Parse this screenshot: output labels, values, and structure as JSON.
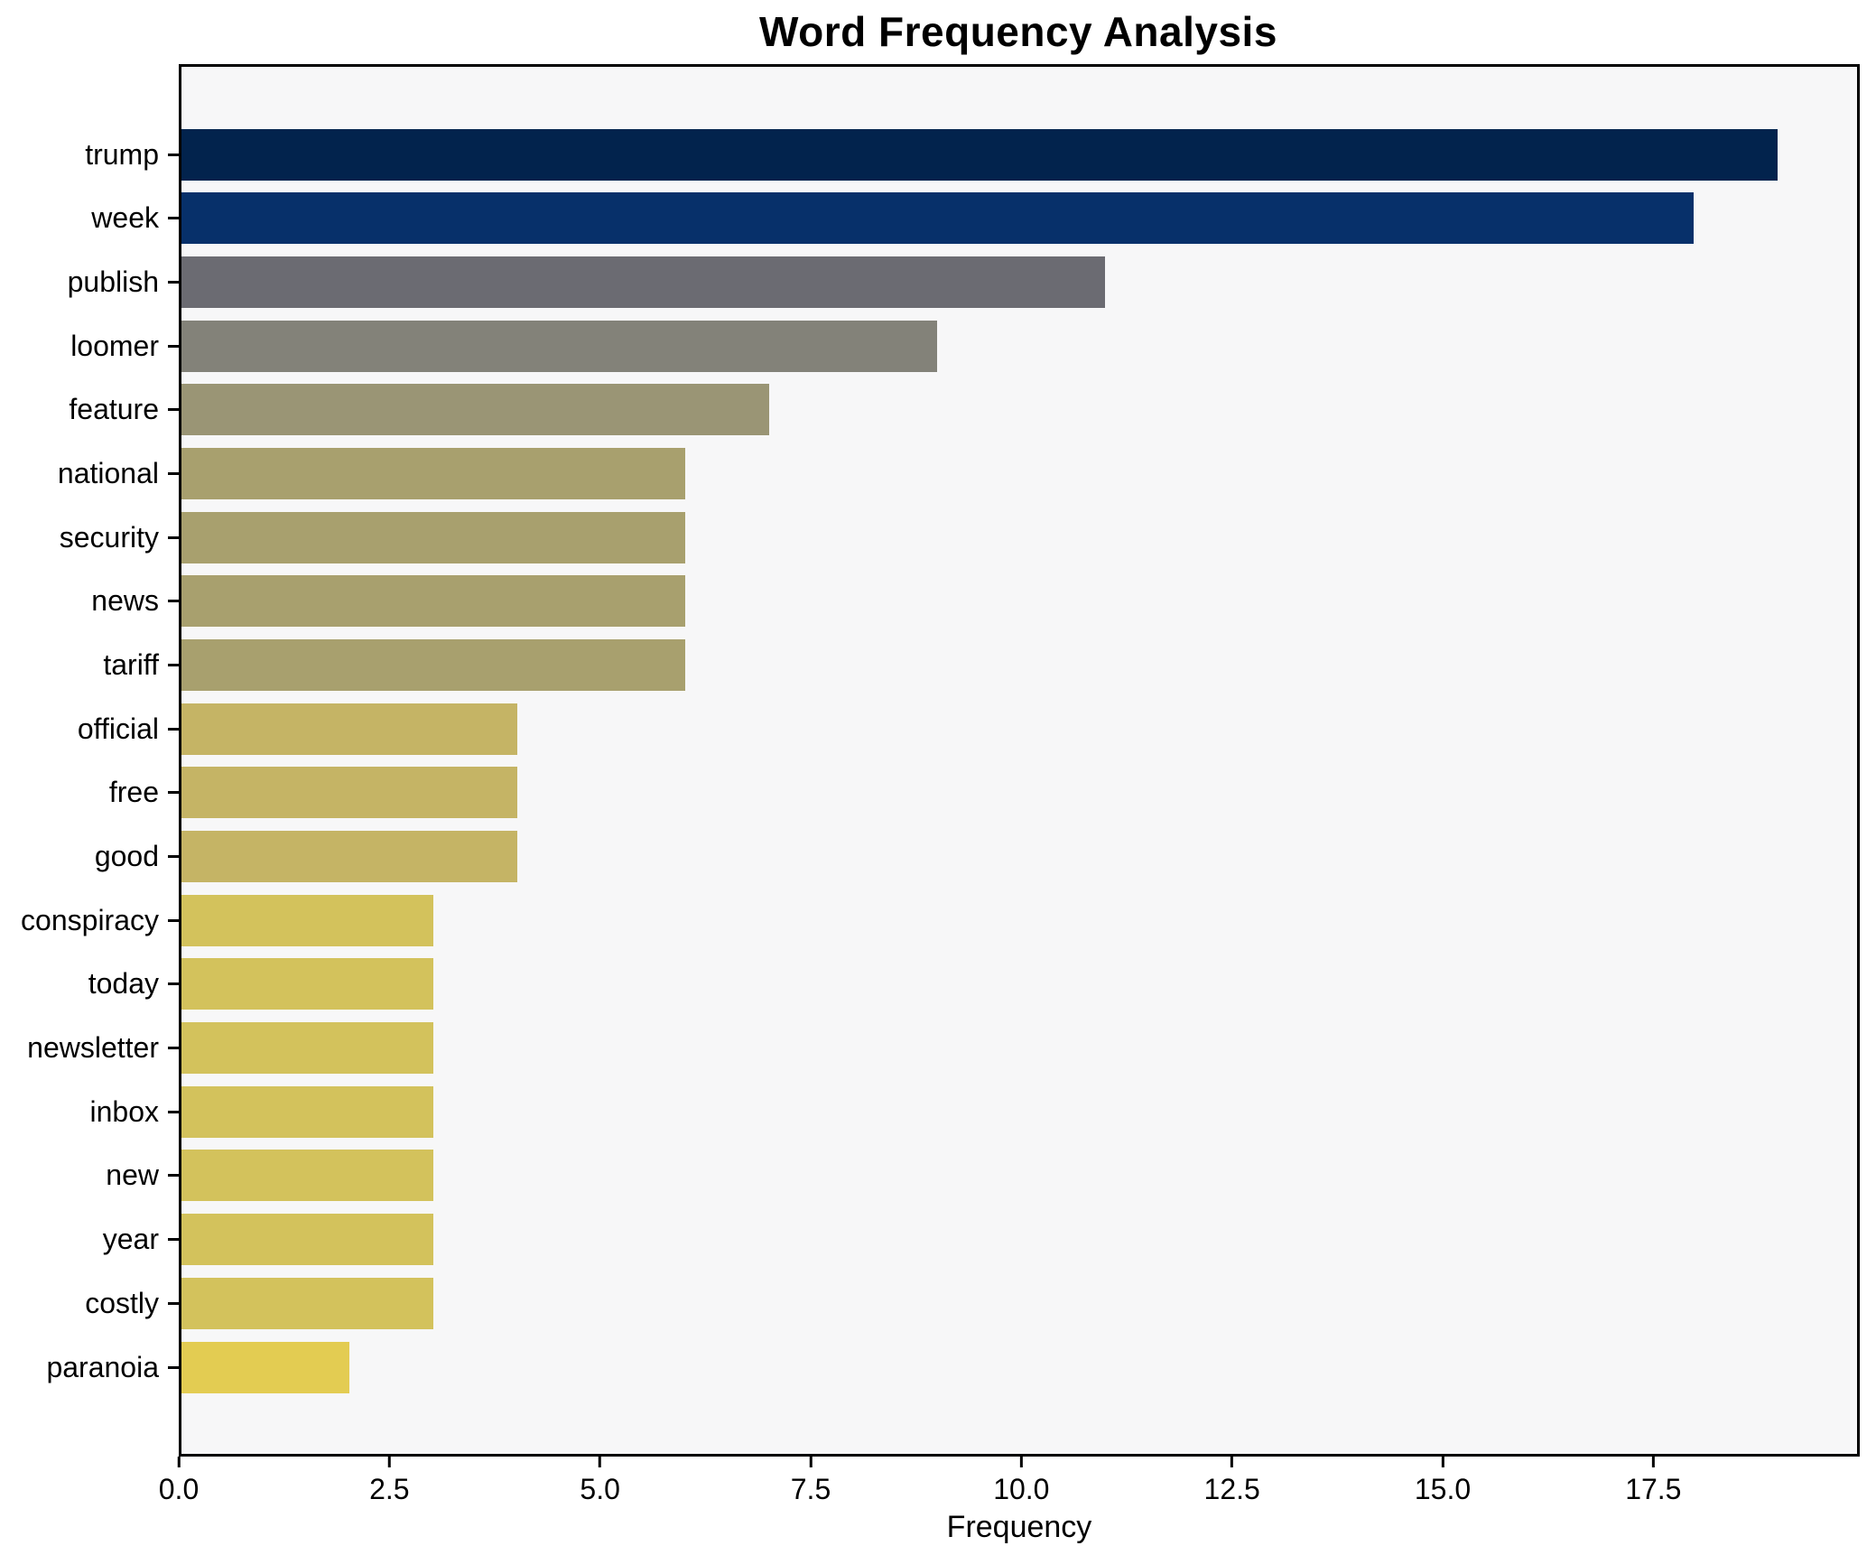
{
  "chart_data": {
    "type": "bar",
    "orientation": "horizontal",
    "title": "Word Frequency Analysis",
    "xlabel": "Frequency",
    "ylabel": "",
    "categories": [
      "trump",
      "week",
      "publish",
      "loomer",
      "feature",
      "national",
      "security",
      "news",
      "tariff",
      "official",
      "free",
      "good",
      "conspiracy",
      "today",
      "newsletter",
      "inbox",
      "new",
      "year",
      "costly",
      "paranoia"
    ],
    "values": [
      19,
      18,
      11,
      9,
      7,
      6,
      6,
      6,
      6,
      4,
      4,
      4,
      3,
      3,
      3,
      3,
      3,
      3,
      3,
      2
    ],
    "bar_colors": [
      "#02234d",
      "#07306a",
      "#6b6b72",
      "#838279",
      "#9a9575",
      "#a8a06e",
      "#a8a06e",
      "#a8a06e",
      "#a8a06e",
      "#c5b465",
      "#c5b465",
      "#c5b465",
      "#d3c25c",
      "#d3c25c",
      "#d3c25c",
      "#d3c25c",
      "#d3c25c",
      "#d3c25c",
      "#d3c25c",
      "#e3cc52"
    ],
    "xlim": [
      0,
      19.95
    ],
    "x_ticks": [
      0,
      2.5,
      5,
      7.5,
      10,
      12.5,
      15,
      17.5
    ],
    "x_tick_labels": [
      "0.0",
      "2.5",
      "5.0",
      "7.5",
      "10.0",
      "12.5",
      "15.0",
      "17.5"
    ],
    "grid": false,
    "legend_position": "none",
    "plot_background": "#f7f7f8",
    "figure_background": "#ffffff",
    "spine_color": "#000000",
    "tick_color": "#000000",
    "text_color": "#000000"
  }
}
